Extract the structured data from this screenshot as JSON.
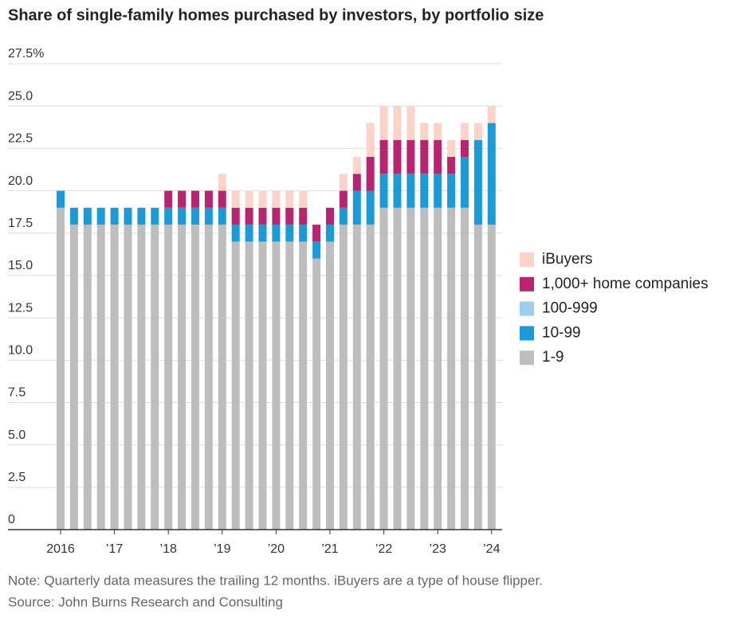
{
  "chart_data": {
    "type": "stacked-bar",
    "title": "Share of single-family homes purchased by investors, by portfolio size",
    "note": "Note: Quarterly data measures the trailing 12 months. iBuyers are a type of house flipper.",
    "source": "Source: John Burns Research and Consulting",
    "categories": [
      "2016",
      null,
      null,
      null,
      "’17",
      null,
      null,
      null,
      "’18",
      null,
      null,
      null,
      "’19",
      null,
      null,
      null,
      "’20",
      null,
      null,
      null,
      "’21",
      null,
      null,
      null,
      "’22",
      null,
      null,
      null,
      "’23",
      null,
      null,
      null,
      "’24"
    ],
    "series": [
      {
        "name": "1-9",
        "color": "#bdbdbd",
        "values": [
          19,
          18,
          18,
          18,
          18,
          18,
          18,
          18,
          18,
          18,
          18,
          18,
          18,
          17,
          17,
          17,
          17,
          17,
          17,
          16,
          17,
          18,
          18,
          18,
          19,
          19,
          19,
          19,
          19,
          19,
          19,
          18,
          18
        ]
      },
      {
        "name": "10-99",
        "color": "#1a9bd7",
        "values": [
          1,
          1,
          1,
          1,
          1,
          1,
          1,
          1,
          1,
          1,
          1,
          1,
          1,
          1,
          1,
          1,
          1,
          1,
          1,
          1,
          1,
          1,
          2,
          2,
          2,
          2,
          2,
          2,
          2,
          2,
          3,
          5,
          6
        ]
      },
      {
        "name": "100-999",
        "color": "#9bcfee",
        "values": [
          0,
          0,
          0,
          0,
          0,
          0,
          0,
          0,
          0,
          0,
          0,
          0,
          0,
          0,
          0,
          0,
          0,
          0,
          0,
          0,
          0,
          0,
          0,
          0,
          0,
          0,
          0,
          0,
          0,
          0,
          0,
          0,
          0
        ]
      },
      {
        "name": "1,000+ home companies",
        "color": "#b8246f",
        "values": [
          0,
          0,
          0,
          0,
          0,
          0,
          0,
          0,
          1,
          1,
          1,
          1,
          1,
          1,
          1,
          1,
          1,
          1,
          1,
          1,
          1,
          1,
          1,
          2,
          2,
          2,
          2,
          2,
          2,
          1,
          1,
          0,
          0
        ]
      },
      {
        "name": "iBuyers",
        "color": "#fbd3c8",
        "values": [
          0,
          0,
          0,
          0,
          0,
          0,
          0,
          0,
          0,
          0,
          0,
          0,
          1,
          1,
          1,
          1,
          1,
          1,
          1,
          0,
          0,
          1,
          1,
          2,
          2,
          2,
          2,
          1,
          1,
          1,
          1,
          1,
          1
        ]
      }
    ],
    "ylim": [
      0,
      27.5
    ],
    "yticks": [
      0,
      2.5,
      {
        "value": 5,
        "label": "5.0"
      },
      7.5,
      {
        "value": 10,
        "label": "10.0"
      },
      12.5,
      {
        "value": 15,
        "label": "15.0"
      },
      17.5,
      {
        "value": 20,
        "label": "20.0"
      },
      22.5,
      {
        "value": 25,
        "label": "25.0"
      },
      {
        "value": 27.5,
        "label": "27.5%"
      }
    ],
    "grid": true,
    "legend": "right"
  }
}
